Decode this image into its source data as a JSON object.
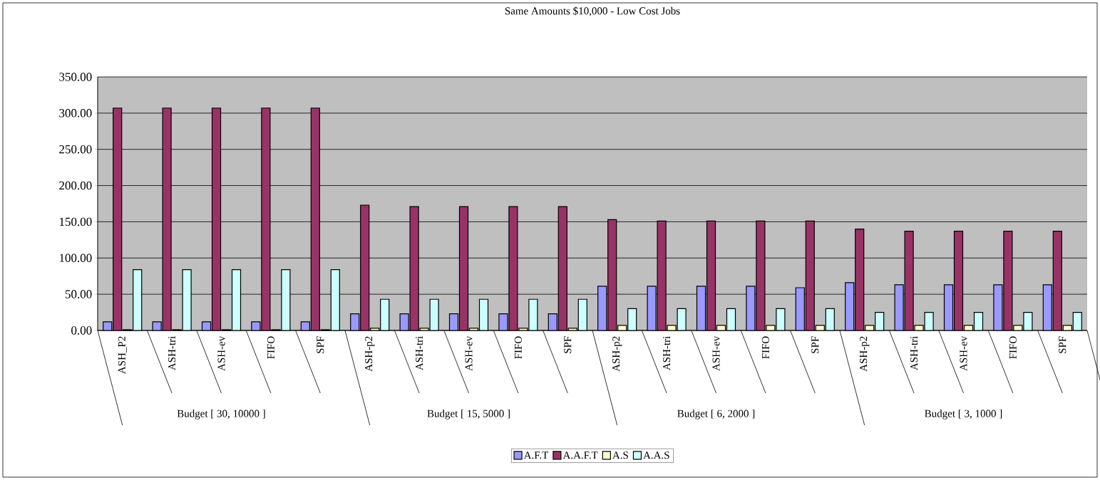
{
  "chart_data": {
    "type": "bar",
    "title": "Same Amounts $10,000 - Low Cost Jobs",
    "categories": [
      "ASH_P2",
      "ASH-tri",
      "ASH-ev",
      "FIFO",
      "SPF",
      "ASH-p2",
      "ASH-tri",
      "ASH-ev",
      "FIFO",
      "SPF",
      "ASH-p2",
      "ASH-tri",
      "ASH-ev",
      "FIFO",
      "SPF",
      "ASH-p2",
      "ASH-tri",
      "ASH-ev",
      "FIFO",
      "SPF"
    ],
    "annotations": [
      "Budget [ 30, 10000 ]",
      "Budget [ 15, 5000 ]",
      "Budget [ 6, 2000 ]",
      "Budget [ 3, 1000 ]"
    ],
    "series": [
      {
        "name": "A.F.T",
        "color": "#9999ff",
        "values": [
          12,
          12,
          12,
          12,
          12,
          23,
          23,
          23,
          23,
          23,
          61,
          61,
          61,
          61,
          59,
          66,
          63,
          63,
          63,
          63
        ]
      },
      {
        "name": "A.A.F.T",
        "color": "#993366",
        "values": [
          307,
          307,
          307,
          307,
          307,
          173,
          171,
          171,
          171,
          171,
          153,
          151,
          151,
          151,
          151,
          140,
          137,
          137,
          137,
          137
        ]
      },
      {
        "name": "A.S",
        "color": "#ffffcc",
        "values": [
          1,
          1,
          1,
          1,
          1,
          3,
          3,
          3,
          3,
          3,
          7,
          7,
          7,
          7,
          7,
          7,
          7,
          7,
          7,
          7
        ]
      },
      {
        "name": "A.A.S",
        "color": "#ccffff",
        "values": [
          84,
          84,
          84,
          84,
          84,
          43,
          43,
          43,
          43,
          43,
          30,
          30,
          30,
          30,
          30,
          25,
          25,
          25,
          25,
          25
        ]
      }
    ],
    "ylim": [
      0,
      350
    ],
    "yticks": [
      {
        "value": 0,
        "label": "0.00"
      },
      {
        "value": 50,
        "label": "50.00"
      },
      {
        "value": 100,
        "label": "100.00"
      },
      {
        "value": 150,
        "label": "150.00"
      },
      {
        "value": 200,
        "label": "200.00"
      },
      {
        "value": 250,
        "label": "250.00"
      },
      {
        "value": 300,
        "label": "300.00"
      },
      {
        "value": 350,
        "label": "350.00"
      }
    ],
    "grid": "y",
    "legend": "bottom"
  }
}
